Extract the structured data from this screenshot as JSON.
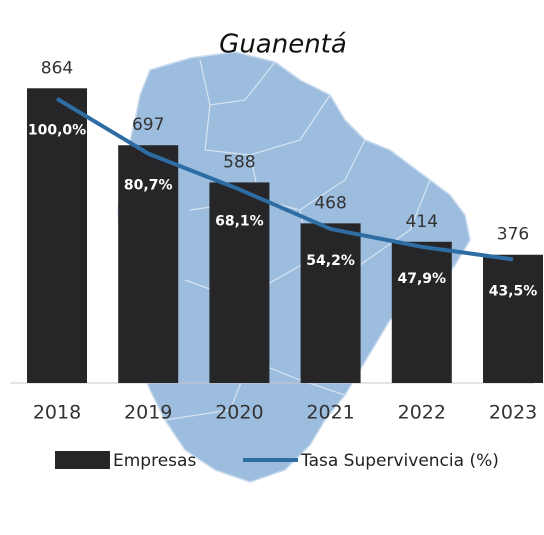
{
  "chart_data": {
    "type": "bar_line",
    "title": "Guanentá",
    "categories": [
      "2018",
      "2019",
      "2020",
      "2021",
      "2022",
      "2023"
    ],
    "series": [
      {
        "name": "Empresas",
        "type": "bar",
        "color": "#262628",
        "values": [
          864,
          697,
          588,
          468,
          414,
          376
        ]
      },
      {
        "name": "Tasa Supervivencia (%)",
        "type": "line",
        "axis": "y2",
        "color": "#2e6da4",
        "values": [
          100.0,
          80.7,
          68.1,
          54.2,
          47.9,
          43.5
        ],
        "value_labels": [
          "100,0%",
          "80,7%",
          "68,1%",
          "54,2%",
          "47,9%",
          "43,5%"
        ]
      }
    ],
    "ylim": [
      0,
      900
    ],
    "y2lim": [
      0,
      108
    ]
  }
}
